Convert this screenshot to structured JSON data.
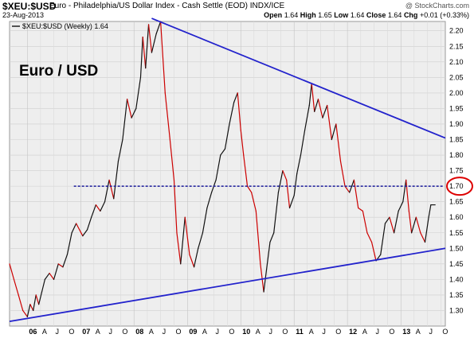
{
  "header": {
    "symbol": "$XEU:$USD",
    "title": "Euro - Philadelphia/US Dollar Index - Cash Settle (EOD)  INDX/ICE",
    "brand": "@ StockCharts.com",
    "date": "23-Aug-2013",
    "ohlc": {
      "open_label": "Open",
      "open": "1.64",
      "high_label": "High",
      "high": "1.65",
      "low_label": "Low",
      "low": "1.64",
      "close_label": "Close",
      "close": "1.64",
      "chg_label": "Chg",
      "chg": "+0.01 (+0.33%)"
    }
  },
  "chart_data": {
    "type": "line",
    "legend_text": "$XEU:$USD (Weekly) 1.64",
    "annotation_text": "Euro / USD",
    "ylim": [
      1.25,
      2.23
    ],
    "y_ticks": [
      1.3,
      1.35,
      1.4,
      1.45,
      1.5,
      1.55,
      1.6,
      1.65,
      1.7,
      1.75,
      1.8,
      1.85,
      1.9,
      1.95,
      2.0,
      2.05,
      2.1,
      2.15,
      2.2
    ],
    "x_tick_labels": [
      "06",
      "A",
      "J",
      "O",
      "07",
      "A",
      "J",
      "O",
      "08",
      "A",
      "J",
      "O",
      "09",
      "A",
      "J",
      "O",
      "10",
      "A",
      "J",
      "O",
      "11",
      "A",
      "J",
      "O",
      "12",
      "A",
      "J",
      "O",
      "13",
      "A",
      "J",
      "O"
    ],
    "x_tick_bold": [
      "06",
      "07",
      "08",
      "09",
      "10",
      "11",
      "12",
      "13"
    ],
    "xlim": [
      "2005-09-01",
      "2013-11-01"
    ],
    "series": [
      {
        "values": [
          [
            "2005-09-01",
            1.45
          ],
          [
            "2005-10-01",
            1.4
          ],
          [
            "2005-11-01",
            1.35
          ],
          [
            "2005-12-01",
            1.3
          ],
          [
            "2006-01-01",
            1.28
          ],
          [
            "2006-01-20",
            1.32
          ],
          [
            "2006-02-10",
            1.3
          ],
          [
            "2006-03-01",
            1.35
          ],
          [
            "2006-03-20",
            1.32
          ],
          [
            "2006-04-10",
            1.36
          ],
          [
            "2006-05-01",
            1.4
          ],
          [
            "2006-06-01",
            1.42
          ],
          [
            "2006-07-01",
            1.4
          ],
          [
            "2006-08-01",
            1.45
          ],
          [
            "2006-09-01",
            1.44
          ],
          [
            "2006-10-01",
            1.48
          ],
          [
            "2006-11-01",
            1.55
          ],
          [
            "2006-12-01",
            1.58
          ],
          [
            "2007-01-15",
            1.54
          ],
          [
            "2007-02-15",
            1.56
          ],
          [
            "2007-03-15",
            1.6
          ],
          [
            "2007-04-15",
            1.64
          ],
          [
            "2007-05-15",
            1.62
          ],
          [
            "2007-06-15",
            1.65
          ],
          [
            "2007-07-15",
            1.72
          ],
          [
            "2007-08-15",
            1.66
          ],
          [
            "2007-09-15",
            1.78
          ],
          [
            "2007-10-15",
            1.85
          ],
          [
            "2007-11-15",
            1.98
          ],
          [
            "2007-12-15",
            1.92
          ],
          [
            "2008-01-15",
            1.95
          ],
          [
            "2008-02-15",
            2.05
          ],
          [
            "2008-03-01",
            2.18
          ],
          [
            "2008-03-20",
            2.08
          ],
          [
            "2008-04-10",
            2.22
          ],
          [
            "2008-05-01",
            2.13
          ],
          [
            "2008-06-01",
            2.19
          ],
          [
            "2008-07-01",
            2.23
          ],
          [
            "2008-08-01",
            2.0
          ],
          [
            "2008-09-01",
            1.86
          ],
          [
            "2008-10-01",
            1.72
          ],
          [
            "2008-10-20",
            1.55
          ],
          [
            "2008-11-15",
            1.45
          ],
          [
            "2008-12-15",
            1.6
          ],
          [
            "2009-01-15",
            1.48
          ],
          [
            "2009-02-15",
            1.44
          ],
          [
            "2009-03-15",
            1.5
          ],
          [
            "2009-04-15",
            1.55
          ],
          [
            "2009-05-15",
            1.63
          ],
          [
            "2009-06-15",
            1.68
          ],
          [
            "2009-07-15",
            1.72
          ],
          [
            "2009-08-15",
            1.8
          ],
          [
            "2009-09-15",
            1.82
          ],
          [
            "2009-10-15",
            1.9
          ],
          [
            "2009-11-15",
            1.97
          ],
          [
            "2009-12-10",
            2.0
          ],
          [
            "2010-01-01",
            1.88
          ],
          [
            "2010-01-20",
            1.8
          ],
          [
            "2010-02-15",
            1.7
          ],
          [
            "2010-03-15",
            1.68
          ],
          [
            "2010-04-15",
            1.62
          ],
          [
            "2010-05-15",
            1.45
          ],
          [
            "2010-06-07",
            1.36
          ],
          [
            "2010-07-01",
            1.45
          ],
          [
            "2010-07-20",
            1.52
          ],
          [
            "2010-08-15",
            1.55
          ],
          [
            "2010-09-15",
            1.68
          ],
          [
            "2010-10-15",
            1.75
          ],
          [
            "2010-11-10",
            1.72
          ],
          [
            "2010-12-01",
            1.63
          ],
          [
            "2011-01-01",
            1.67
          ],
          [
            "2011-01-20",
            1.74
          ],
          [
            "2011-02-15",
            1.8
          ],
          [
            "2011-03-15",
            1.88
          ],
          [
            "2011-04-15",
            1.96
          ],
          [
            "2011-05-01",
            2.03
          ],
          [
            "2011-05-20",
            1.94
          ],
          [
            "2011-06-15",
            1.98
          ],
          [
            "2011-07-15",
            1.92
          ],
          [
            "2011-08-15",
            1.96
          ],
          [
            "2011-09-15",
            1.85
          ],
          [
            "2011-10-15",
            1.9
          ],
          [
            "2011-11-15",
            1.78
          ],
          [
            "2011-12-15",
            1.7
          ],
          [
            "2012-01-15",
            1.68
          ],
          [
            "2012-02-15",
            1.72
          ],
          [
            "2012-03-15",
            1.63
          ],
          [
            "2012-04-15",
            1.62
          ],
          [
            "2012-05-15",
            1.55
          ],
          [
            "2012-06-15",
            1.52
          ],
          [
            "2012-07-15",
            1.46
          ],
          [
            "2012-08-15",
            1.48
          ],
          [
            "2012-09-15",
            1.58
          ],
          [
            "2012-10-15",
            1.6
          ],
          [
            "2012-11-15",
            1.55
          ],
          [
            "2012-12-15",
            1.62
          ],
          [
            "2013-01-15",
            1.65
          ],
          [
            "2013-02-05",
            1.72
          ],
          [
            "2013-02-25",
            1.62
          ],
          [
            "2013-03-15",
            1.55
          ],
          [
            "2013-04-15",
            1.6
          ],
          [
            "2013-05-15",
            1.55
          ],
          [
            "2013-06-15",
            1.52
          ],
          [
            "2013-07-10",
            1.6
          ],
          [
            "2013-07-25",
            1.64
          ],
          [
            "2013-08-23",
            1.64
          ]
        ]
      }
    ],
    "trendlines": [
      {
        "start": [
          "2008-05-01",
          2.24
        ],
        "end": [
          "2013-11-01",
          1.855
        ],
        "color": "#2222cc"
      },
      {
        "start": [
          "2005-09-01",
          1.265
        ],
        "end": [
          "2013-11-01",
          1.5
        ],
        "color": "#2222cc"
      }
    ],
    "hline": {
      "y": 1.7,
      "from": "2006-11-15",
      "color": "#1a1a9a"
    },
    "highlight_tick": "1.70",
    "colors": {
      "up": "#111111",
      "down": "#cc0000",
      "trend": "#2222cc",
      "circle": "#dd0000"
    },
    "grid": true
  }
}
